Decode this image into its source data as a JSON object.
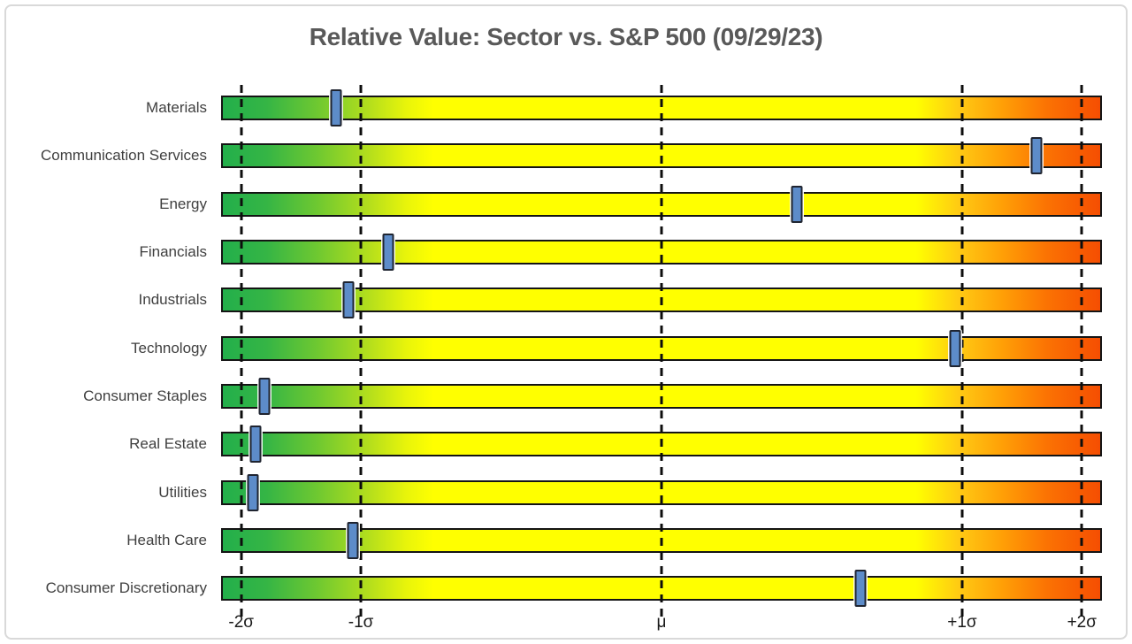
{
  "title": "Relative Value: Sector vs. S&P 500 (09/29/23)",
  "chart_data": {
    "type": "scatter",
    "title": "Relative Value: Sector vs. S&P 500 (09/29/23)",
    "description": "Horizontal green-to-yellow-to-red gradient gauge bars per sector; a blue slider marker shows each sector's relative-value z-score on a normal-percentile scale.",
    "x_axis": {
      "scale": "normal-percentile",
      "tick_labels": [
        "-2σ",
        "-1σ",
        "μ",
        "+1σ",
        "+2σ"
      ],
      "tick_sigma": [
        -2,
        -1,
        0,
        1,
        2
      ],
      "tick_percentiles": [
        2.28,
        15.87,
        50,
        84.13,
        97.72
      ],
      "gridlines": "dashed-vertical"
    },
    "sectors": [
      {
        "label": "Materials",
        "percentile": 12.9,
        "z_score": -1.13
      },
      {
        "label": "Communication Services",
        "percentile": 92.7,
        "z_score": 1.45
      },
      {
        "label": "Energy",
        "percentile": 65.4,
        "z_score": 0.4
      },
      {
        "label": "Financials",
        "percentile": 18.9,
        "z_score": -0.88
      },
      {
        "label": "Industrials",
        "percentile": 14.3,
        "z_score": -1.07
      },
      {
        "label": "Technology",
        "percentile": 83.5,
        "z_score": 0.97
      },
      {
        "label": "Consumer Staples",
        "percentile": 4.7,
        "z_score": -1.67
      },
      {
        "label": "Real Estate",
        "percentile": 3.7,
        "z_score": -1.79
      },
      {
        "label": "Utilities",
        "percentile": 3.4,
        "z_score": -1.83
      },
      {
        "label": "Health Care",
        "percentile": 14.8,
        "z_score": -1.04
      },
      {
        "label": "Consumer Discretionary",
        "percentile": 72.7,
        "z_score": 0.6
      }
    ],
    "colors": {
      "bar_gradient_stops": [
        {
          "pos": 0,
          "color": "#23AF4B"
        },
        {
          "pos": 5,
          "color": "#35B545"
        },
        {
          "pos": 11,
          "color": "#71C930"
        },
        {
          "pos": 17,
          "color": "#B8E01B"
        },
        {
          "pos": 21,
          "color": "#E9F50A"
        },
        {
          "pos": 24,
          "color": "#FFFF00"
        },
        {
          "pos": 79,
          "color": "#FFFF00"
        },
        {
          "pos": 84,
          "color": "#FFC913"
        },
        {
          "pos": 89,
          "color": "#FF9E06"
        },
        {
          "pos": 94,
          "color": "#FB7203"
        },
        {
          "pos": 100,
          "color": "#F54E02"
        }
      ],
      "bar_border": "#141414",
      "marker_fill": "#5D8CC9",
      "marker_border": "#1F2430",
      "gridline": "#0D0D0D",
      "title_text": "#595959",
      "sector_label_text": "#3F3F3F",
      "tick_label_text": "#1A1A1A",
      "frame_border": "#D9D9D9",
      "background": "#FFFFFF"
    },
    "legend": {
      "visible": false
    }
  }
}
